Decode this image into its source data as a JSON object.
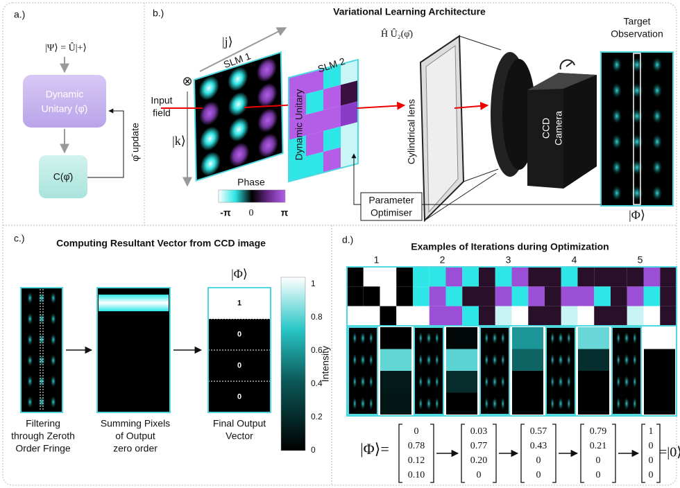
{
  "panel_a": {
    "label": "a.)",
    "state": "|Ψ⟩ = Û|+⟩",
    "unitary": [
      "Dynamic",
      "Unitary (φ̄)"
    ],
    "cost": "C(φ̄)",
    "update": "φ̄ update"
  },
  "panel_b": {
    "label": "b.)",
    "title": "Variational Learning Architecture",
    "j_axis": "|j⟩",
    "slm1": "SLM 1",
    "tensor": "⊗",
    "input": [
      "Input",
      "field"
    ],
    "k_axis": "|k⟩",
    "phase": {
      "title": "Phase",
      "ticks": [
        "-π",
        "0",
        "π"
      ]
    },
    "slm2": "SLM 2",
    "slm2_op": "Ĥ Û₂(φ̄)",
    "dynamic_unitary": "Dynamic Unitary",
    "lens": "Cylindrical lens",
    "camera": [
      "CCD",
      "Camera"
    ],
    "target": [
      "Target",
      "Observation"
    ],
    "target_state": "|Φ⟩",
    "optimiser": [
      "Parameter",
      "Optimiser"
    ]
  },
  "panel_c": {
    "label": "c.)",
    "title": "Computing Resultant Vector from CCD image",
    "vector_label": "|Φ⟩",
    "vector": [
      "1",
      "0",
      "0",
      "0"
    ],
    "colorbar": {
      "ticks": [
        "1",
        "0.8",
        "0.6",
        "0.4",
        "0.2",
        "0"
      ],
      "label": "Intensity"
    },
    "captions": [
      [
        "Filtering",
        "through Zeroth",
        "Order Fringe"
      ],
      [
        "Summing Pixels",
        "of Output",
        "zero order"
      ],
      [
        "Final Output",
        "Vector"
      ]
    ]
  },
  "panel_d": {
    "label": "d.)",
    "title": "Examples of Iterations during Optimization",
    "iterations": [
      "1",
      "2",
      "3",
      "4",
      "5"
    ],
    "lhs": "|Φ⟩=",
    "vectors": [
      [
        "0",
        "0.78",
        "0.12",
        "0.10"
      ],
      [
        "0.03",
        "0.77",
        "0.20",
        "0"
      ],
      [
        "0.57",
        "0.43",
        "0",
        "0"
      ],
      [
        "0.79",
        "0.21",
        "0",
        "0"
      ],
      [
        "1",
        "0",
        "0",
        "0"
      ]
    ],
    "rhs": "=|0⟩"
  }
}
